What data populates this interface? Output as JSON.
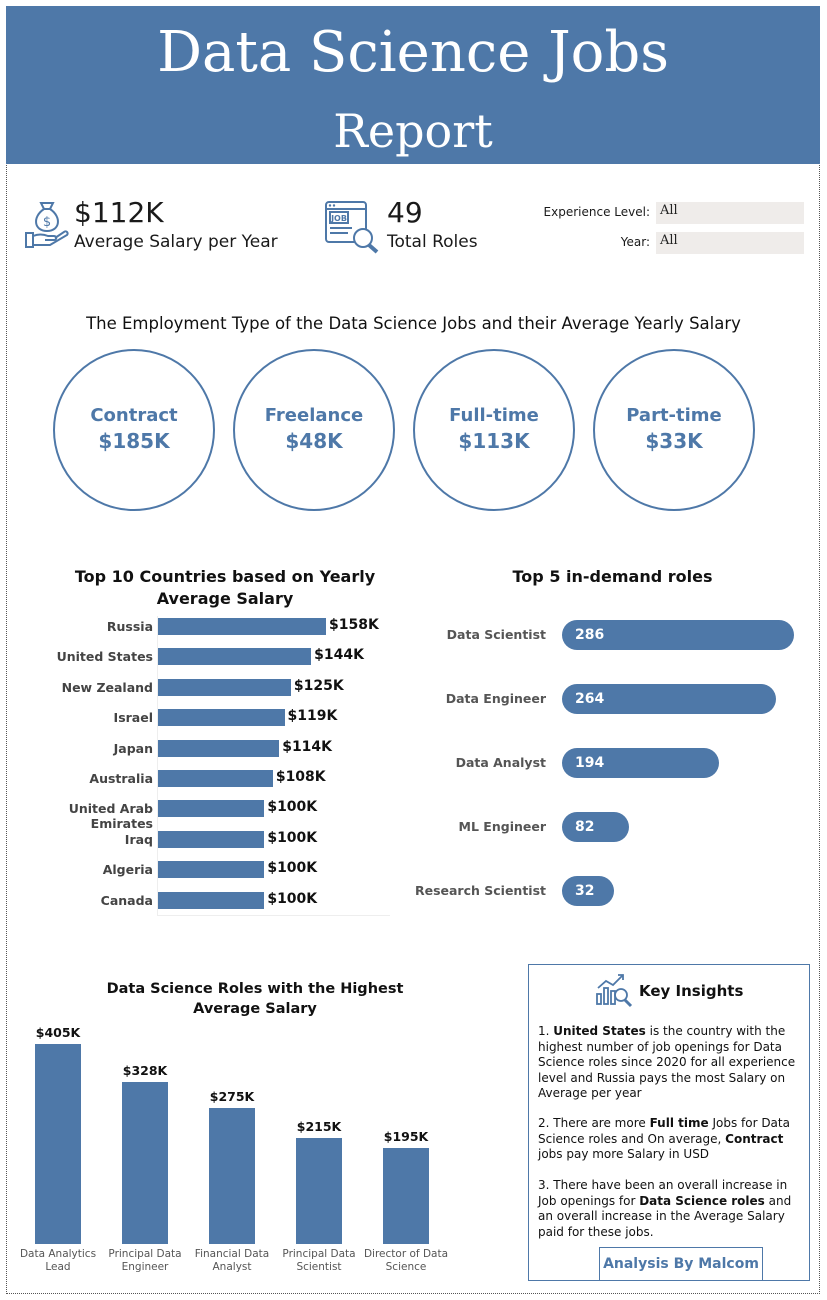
{
  "header": {
    "title_line1": "Data Science Jobs",
    "title_line2": "Report"
  },
  "kpis": {
    "avg_salary": {
      "value": "$112K",
      "label": "Average Salary per Year",
      "icon": "money-bag-hand-icon"
    },
    "total_roles": {
      "value": "49",
      "label": "Total Roles",
      "icon": "job-search-icon",
      "icon_text": "JOB"
    }
  },
  "filters": {
    "experience": {
      "label": "Experience Level:",
      "value": "All"
    },
    "year": {
      "label": "Year:",
      "value": "All"
    }
  },
  "employment": {
    "title": "The Employment Type of the Data Science Jobs and their Average Yearly Salary",
    "items": [
      {
        "name": "Contract",
        "value": "$185K"
      },
      {
        "name": "Freelance",
        "value": "$48K"
      },
      {
        "name": "Full-time",
        "value": "$113K"
      },
      {
        "name": "Part-time",
        "value": "$33K"
      }
    ]
  },
  "countries": {
    "title_line1": "Top 10 Countries based on Yearly",
    "title_line2": "Average Salary",
    "chart_data": {
      "type": "bar",
      "orientation": "horizontal",
      "categories": [
        "Russia",
        "United States",
        "New Zealand",
        "Israel",
        "Japan",
        "Australia",
        "United Arab Emirates",
        "Iraq",
        "Algeria",
        "Canada"
      ],
      "values": [
        158,
        144,
        125,
        119,
        114,
        108,
        100,
        100,
        100,
        100
      ],
      "labels": [
        "$158K",
        "$144K",
        "$125K",
        "$119K",
        "$114K",
        "$108K",
        "$100K",
        "$100K",
        "$100K",
        "$100K"
      ]
    }
  },
  "roles": {
    "title": "Top 5 in-demand roles",
    "chart_data": {
      "type": "bar",
      "orientation": "horizontal",
      "categories": [
        "Data Scientist",
        "Data Engineer",
        "Data Analyst",
        "ML Engineer",
        "Research Scientist"
      ],
      "values": [
        286,
        264,
        194,
        82,
        32
      ],
      "labels": [
        "286",
        "264",
        "194",
        "82",
        "32"
      ]
    }
  },
  "highest": {
    "title_line1": "Data Science Roles with the Highest",
    "title_line2": "Average Salary",
    "chart_data": {
      "type": "bar",
      "orientation": "vertical",
      "categories": [
        [
          "Data Analytics",
          "Lead"
        ],
        [
          "Principal Data",
          "Engineer"
        ],
        [
          "Financial Data",
          "Analyst"
        ],
        [
          "Principal Data",
          "Scientist"
        ],
        [
          "Director of Data",
          "Science"
        ]
      ],
      "values": [
        405,
        328,
        275,
        215,
        195
      ],
      "labels": [
        "$405K",
        "$328K",
        "$275K",
        "$215K",
        "$195K"
      ]
    }
  },
  "insights": {
    "title": "Key Insights",
    "icon": "chart-magnifier-icon",
    "p1": {
      "n": "1. ",
      "b1": "United States",
      "t1": " is the country with the highest number of job openings for Data Science roles since 2020 for all experience level and Russia pays the most Salary on Average per year"
    },
    "p2": {
      "n": "2. ",
      "t1": "There are more ",
      "b1": "Full time",
      "t2": " Jobs for Data Science roles and On average, ",
      "b2": "Contract",
      "t3": " jobs pay more Salary in USD"
    },
    "p3": {
      "n": "3. ",
      "t1": "There have been an overall increase in Job openings for ",
      "b1": "Data Science roles",
      "t2": " and an overall increase in the Average Salary paid for these jobs."
    },
    "author": "Analysis By Malcom"
  },
  "colors": {
    "accent": "#4e78a8",
    "filter_bg": "#efecea"
  }
}
